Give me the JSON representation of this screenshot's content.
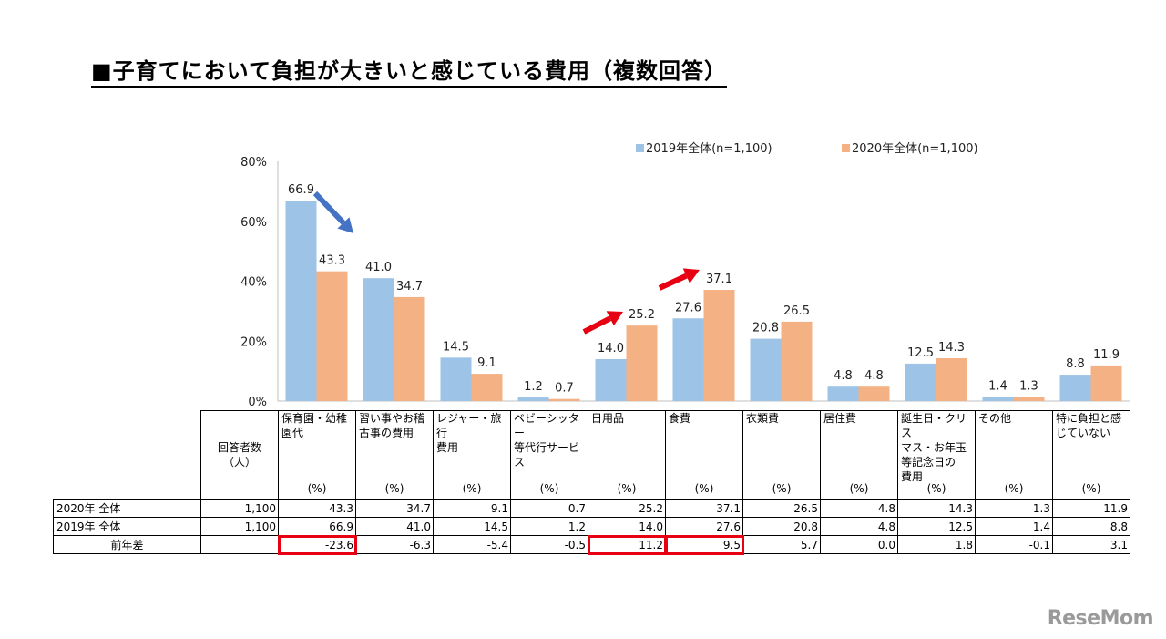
{
  "title": "■子育てにおいて負担が大きいと感じている費用（複数回答）",
  "chart_data": {
    "type": "bar",
    "ylim": [
      0,
      80
    ],
    "yticks": [
      "0%",
      "20%",
      "40%",
      "60%",
      "80%"
    ],
    "ytick_values": [
      0,
      20,
      40,
      60,
      80
    ],
    "legend_position": "top-right",
    "categories": [
      "保育園・幼稚園代",
      "習い事やお稽古事の費用",
      "レジャー・旅行費用",
      "ベビーシッター等代行行サービス",
      "日用品",
      "食費",
      "衣類費",
      "居住費",
      "誕生日・クリスマス・お年玉等記念日の費用",
      "その他",
      "特に負担と感じていない"
    ],
    "series": [
      {
        "name": "2019年全体(n=1,100)",
        "color": "#9dc3e6",
        "values": [
          66.9,
          41.0,
          14.5,
          1.2,
          14.0,
          27.6,
          20.8,
          4.8,
          12.5,
          1.4,
          8.8
        ]
      },
      {
        "name": "2020年全体(n=1,100)",
        "color": "#f4b183",
        "values": [
          43.3,
          34.7,
          9.1,
          0.7,
          25.2,
          37.1,
          26.5,
          4.8,
          14.3,
          1.3,
          11.9
        ]
      }
    ],
    "value_labels": [
      [
        "66.9",
        "41.0",
        "14.5",
        "1.2",
        "14.0",
        "27.6",
        "20.8",
        "4.8",
        "12.5",
        "1.4",
        "8.8"
      ],
      [
        "43.3",
        "34.7",
        "9.1",
        "0.7",
        "25.2",
        "37.1",
        "26.5",
        "4.8",
        "14.3",
        "1.3",
        "11.9"
      ]
    ],
    "annotations": [
      {
        "type": "arrow-down",
        "color": "#4472c4",
        "category_index": 0
      },
      {
        "type": "arrow-up",
        "color": "#e60012",
        "category_index": 4
      },
      {
        "type": "arrow-up",
        "color": "#e60012",
        "category_index": 5
      }
    ]
  },
  "table": {
    "respondents_header": "回答者数\n（人）",
    "columns": [
      "保育園・幼稚\n園代",
      "習い事やお稽\n古事の費用",
      "レジャー・旅行\n費用",
      "ベビーシッター\n等代行サービ\nス",
      "日用品",
      "食費",
      "衣類費",
      "居住費",
      "誕生日・クリス\nマス・お年玉\n等記念日の\n費用",
      "その他",
      "特に負担と感\nじていない"
    ],
    "unit": "(%)",
    "rows": [
      {
        "label": "2020年 全体",
        "n": "1,100",
        "values": [
          "43.3",
          "34.7",
          "9.1",
          "0.7",
          "25.2",
          "37.1",
          "26.5",
          "4.8",
          "14.3",
          "1.3",
          "11.9"
        ]
      },
      {
        "label": "2019年 全体",
        "n": "1,100",
        "values": [
          "66.9",
          "41.0",
          "14.5",
          "1.2",
          "14.0",
          "27.6",
          "20.8",
          "4.8",
          "12.5",
          "1.4",
          "8.8"
        ]
      },
      {
        "label": "前年差",
        "n": "",
        "values": [
          "-23.6",
          "-6.3",
          "-5.4",
          "-0.5",
          "11.2",
          "9.5",
          "5.7",
          "0.0",
          "1.8",
          "-0.1",
          "3.1"
        ]
      }
    ],
    "highlighted_diff_indices": [
      0,
      4,
      5
    ],
    "highlight_color": "#e60012"
  },
  "logo": "ReseMom"
}
